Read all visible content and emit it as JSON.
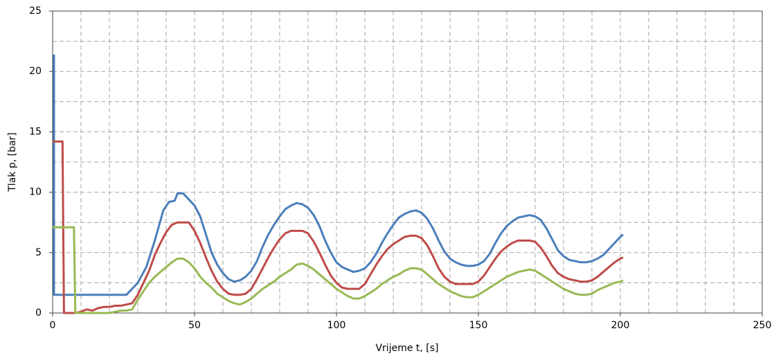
{
  "chart_data": {
    "type": "line",
    "xlabel": "Vrijeme t, [s]",
    "ylabel": "Tlak p, [bar]",
    "xlim": [
      0,
      250
    ],
    "ylim": [
      0,
      25
    ],
    "xticks": [
      0,
      50,
      100,
      150,
      200,
      250
    ],
    "yticks": [
      0,
      5,
      10,
      15,
      20,
      25
    ],
    "grid": true,
    "xgrid": [
      10,
      20,
      30,
      40,
      50,
      60,
      70,
      80,
      90,
      100,
      110,
      120,
      130,
      140,
      150,
      160,
      170,
      180,
      190,
      200,
      210,
      220,
      230,
      240
    ],
    "ygrid": [
      2.5,
      5,
      7.5,
      10,
      12.5,
      15,
      17.5,
      20,
      22.5
    ],
    "series": [
      {
        "color": "#4a7ebb",
        "x": [
          0.5,
          0.5,
          26,
          28,
          30,
          33,
          36,
          39,
          41,
          43,
          44,
          46,
          48,
          50,
          52,
          54,
          56,
          58,
          60,
          62,
          64,
          66,
          68,
          70,
          72,
          74,
          76,
          78,
          80,
          82,
          84,
          86,
          88,
          90,
          92,
          94,
          96,
          98,
          100,
          102,
          104,
          106,
          108,
          110,
          112,
          114,
          116,
          118,
          120,
          122,
          124,
          126,
          128,
          130,
          132,
          134,
          136,
          138,
          140,
          142,
          144,
          146,
          148,
          150,
          152,
          154,
          156,
          158,
          160,
          162,
          164,
          166,
          168,
          170,
          172,
          174,
          176,
          178,
          180,
          182,
          184,
          186,
          188,
          190,
          192,
          194,
          196,
          198,
          200,
          201
        ],
        "values": [
          21.4,
          1.5,
          1.5,
          2.0,
          2.5,
          3.8,
          6,
          8.5,
          9.2,
          9.3,
          9.9,
          9.9,
          9.4,
          8.9,
          8.0,
          6.5,
          5.0,
          4.0,
          3.3,
          2.8,
          2.6,
          2.7,
          3.0,
          3.5,
          4.3,
          5.5,
          6.5,
          7.3,
          8.0,
          8.6,
          8.9,
          9.1,
          9.0,
          8.7,
          8.1,
          7.2,
          6.0,
          5.0,
          4.2,
          3.8,
          3.6,
          3.4,
          3.5,
          3.7,
          4.2,
          4.9,
          5.8,
          6.6,
          7.3,
          7.9,
          8.2,
          8.4,
          8.5,
          8.3,
          7.8,
          7.0,
          6.0,
          5.1,
          4.5,
          4.2,
          4.0,
          3.9,
          3.9,
          4.0,
          4.3,
          4.9,
          5.8,
          6.6,
          7.2,
          7.6,
          7.9,
          8.0,
          8.1,
          8.0,
          7.7,
          7.0,
          6.1,
          5.2,
          4.7,
          4.4,
          4.3,
          4.2,
          4.2,
          4.3,
          4.5,
          4.8,
          5.3,
          5.8,
          6.3,
          6.5
        ]
      },
      {
        "color": "#be4b48",
        "x": [
          0,
          3.5,
          4,
          8,
          10,
          12,
          14,
          16,
          18,
          20,
          22,
          24,
          26,
          28,
          30,
          32,
          34,
          36,
          38,
          40,
          42,
          44,
          46,
          48,
          50,
          52,
          54,
          56,
          58,
          60,
          62,
          64,
          66,
          68,
          70,
          72,
          74,
          76,
          78,
          80,
          82,
          84,
          86,
          88,
          90,
          92,
          94,
          96,
          98,
          100,
          102,
          104,
          106,
          108,
          110,
          112,
          114,
          116,
          118,
          120,
          122,
          124,
          126,
          128,
          130,
          132,
          134,
          136,
          138,
          140,
          142,
          144,
          146,
          148,
          150,
          152,
          154,
          156,
          158,
          160,
          162,
          164,
          166,
          168,
          170,
          172,
          174,
          176,
          178,
          180,
          182,
          184,
          186,
          188,
          190,
          192,
          194,
          196,
          198,
          200,
          201
        ],
        "values": [
          14.2,
          14.2,
          0,
          0,
          0.1,
          0.3,
          0.2,
          0.4,
          0.5,
          0.5,
          0.6,
          0.6,
          0.7,
          0.8,
          1.5,
          2.5,
          3.5,
          4.8,
          5.8,
          6.7,
          7.3,
          7.5,
          7.5,
          7.5,
          6.8,
          5.8,
          4.6,
          3.5,
          2.6,
          2.0,
          1.6,
          1.5,
          1.5,
          1.6,
          2.0,
          2.8,
          3.7,
          4.6,
          5.4,
          6.1,
          6.6,
          6.8,
          6.8,
          6.8,
          6.6,
          5.9,
          5.0,
          4.0,
          3.1,
          2.5,
          2.1,
          2.0,
          2.0,
          2.0,
          2.4,
          3.2,
          4.0,
          4.7,
          5.3,
          5.7,
          6.0,
          6.3,
          6.4,
          6.4,
          6.2,
          5.6,
          4.7,
          3.7,
          3.0,
          2.6,
          2.4,
          2.4,
          2.4,
          2.4,
          2.6,
          3.1,
          3.8,
          4.5,
          5.1,
          5.5,
          5.8,
          6.0,
          6.0,
          6.0,
          5.9,
          5.4,
          4.7,
          3.9,
          3.3,
          3.0,
          2.8,
          2.7,
          2.6,
          2.6,
          2.7,
          3.0,
          3.4,
          3.8,
          4.2,
          4.5,
          4.6
        ]
      },
      {
        "color": "#98b954",
        "x": [
          0,
          7.5,
          8,
          20,
          22,
          24,
          26,
          28,
          30,
          32,
          34,
          36,
          38,
          40,
          42,
          44,
          46,
          48,
          50,
          52,
          54,
          56,
          58,
          60,
          62,
          64,
          66,
          68,
          70,
          72,
          74,
          76,
          78,
          80,
          82,
          84,
          86,
          88,
          90,
          92,
          94,
          96,
          98,
          100,
          102,
          104,
          106,
          108,
          110,
          112,
          114,
          116,
          118,
          120,
          122,
          124,
          126,
          128,
          130,
          132,
          134,
          136,
          138,
          140,
          142,
          144,
          146,
          148,
          150,
          152,
          154,
          156,
          158,
          160,
          162,
          164,
          166,
          168,
          170,
          172,
          174,
          176,
          178,
          180,
          182,
          184,
          186,
          188,
          190,
          192,
          194,
          196,
          198,
          200,
          201
        ],
        "values": [
          7.1,
          7.1,
          0,
          0,
          0.1,
          0.2,
          0.2,
          0.3,
          1.1,
          1.8,
          2.5,
          3.0,
          3.4,
          3.8,
          4.2,
          4.5,
          4.5,
          4.2,
          3.7,
          3.0,
          2.5,
          2.1,
          1.6,
          1.3,
          1.0,
          0.8,
          0.7,
          0.9,
          1.2,
          1.6,
          2.0,
          2.3,
          2.6,
          3.0,
          3.3,
          3.6,
          4.0,
          4.1,
          3.9,
          3.6,
          3.2,
          2.8,
          2.4,
          2.0,
          1.7,
          1.4,
          1.2,
          1.2,
          1.4,
          1.7,
          2.0,
          2.4,
          2.7,
          3.0,
          3.2,
          3.5,
          3.7,
          3.7,
          3.6,
          3.2,
          2.8,
          2.4,
          2.1,
          1.8,
          1.6,
          1.4,
          1.3,
          1.3,
          1.5,
          1.8,
          2.1,
          2.4,
          2.7,
          3.0,
          3.2,
          3.4,
          3.5,
          3.6,
          3.5,
          3.2,
          2.9,
          2.6,
          2.3,
          2.0,
          1.8,
          1.6,
          1.5,
          1.5,
          1.6,
          1.9,
          2.1,
          2.3,
          2.5,
          2.6,
          2.7
        ]
      }
    ]
  }
}
